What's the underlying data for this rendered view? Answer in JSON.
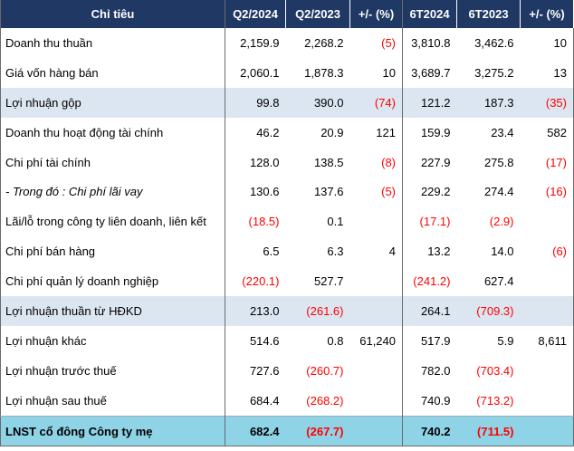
{
  "header": [
    "Chỉ tiêu",
    "Q2/2024",
    "Q2/2023",
    "+/- (%)",
    "6T2024",
    "6T2023",
    "+/- (%)"
  ],
  "rows": [
    {
      "label": "Doanh thu thuần",
      "cells": [
        "2,159.9",
        "2,268.2",
        "(5)",
        "3,810.8",
        "3,462.6",
        "10"
      ],
      "style": "normal"
    },
    {
      "label": "Giá vốn hàng bán",
      "cells": [
        "2,060.1",
        "1,878.3",
        "10",
        "3,689.7",
        "3,275.2",
        "13"
      ],
      "style": "normal"
    },
    {
      "label": "Lợi nhuận gộp",
      "cells": [
        "99.8",
        "390.0",
        "(74)",
        "121.2",
        "187.3",
        "(35)"
      ],
      "style": "shade"
    },
    {
      "label": "Doanh thu hoạt động tài chính",
      "cells": [
        "46.2",
        "20.9",
        "121",
        "159.9",
        "23.4",
        "582"
      ],
      "style": "normal"
    },
    {
      "label": "Chi phí tài chính",
      "cells": [
        "128.0",
        "138.5",
        "(8)",
        "227.9",
        "275.8",
        "(17)"
      ],
      "style": "normal"
    },
    {
      "label": "- Trong đó : Chi phí lãi vay",
      "cells": [
        "130.6",
        "137.6",
        "(5)",
        "229.2",
        "274.4",
        "(16)"
      ],
      "style": "italic"
    },
    {
      "label": "Lãi/lỗ trong công ty liên doanh, liên kết",
      "cells": [
        "(18.5)",
        "0.1",
        "",
        "(17.1)",
        "(2.9)",
        ""
      ],
      "style": "normal"
    },
    {
      "label": "Chi phí bán hàng",
      "cells": [
        "6.5",
        "6.3",
        "4",
        "13.2",
        "14.0",
        "(6)"
      ],
      "style": "normal"
    },
    {
      "label": "Chi phí quản lý doanh nghiệp",
      "cells": [
        "(220.1)",
        "527.7",
        "",
        "(241.2)",
        "627.4",
        ""
      ],
      "style": "normal"
    },
    {
      "label": "Lợi nhuận thuần từ HĐKD",
      "cells": [
        "213.0",
        "(261.6)",
        "",
        "264.1",
        "(709.3)",
        ""
      ],
      "style": "shade"
    },
    {
      "label": "Lợi nhuận khác",
      "cells": [
        "514.6",
        "0.8",
        "61,240",
        "517.9",
        "5.9",
        "8,611"
      ],
      "style": "normal"
    },
    {
      "label": "Lợi nhuận trước thuế",
      "cells": [
        "727.6",
        "(260.7)",
        "",
        "782.0",
        "(703.4)",
        ""
      ],
      "style": "normal"
    },
    {
      "label": "Lợi nhuận sau thuế",
      "cells": [
        "684.4",
        "(268.2)",
        "",
        "740.9",
        "(713.2)",
        ""
      ],
      "style": "normal"
    },
    {
      "label": "LNST cổ đông Công ty mẹ",
      "cells": [
        "682.4",
        "(267.7)",
        "",
        "740.2",
        "(711.5)",
        ""
      ],
      "style": "total"
    }
  ],
  "colors": {
    "header_bg": "#1f3864",
    "shade_bg": "#dce6f1",
    "total_bg": "#8fd3e6",
    "negative": "#ff0000"
  }
}
